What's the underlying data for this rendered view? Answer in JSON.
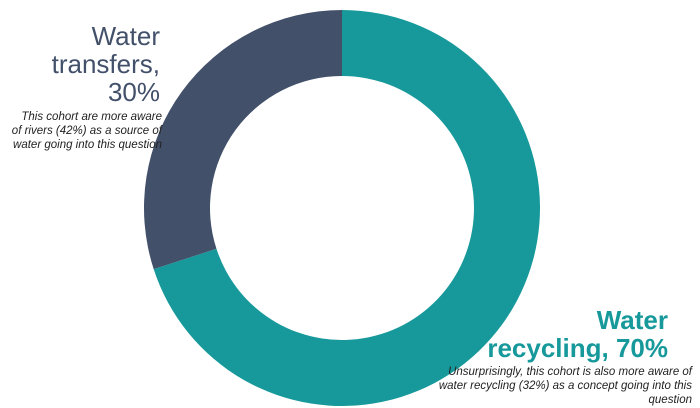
{
  "chart_data": {
    "type": "pie",
    "variant": "donut",
    "slices": [
      {
        "label_line1": "Water",
        "label_line2": "recycling, 70%",
        "value": 70,
        "color": "#17999b",
        "note": "Unsurprisingly, this cohort is also more aware of water recycling (32%) as a concept going into this question"
      },
      {
        "label_line1": "Water",
        "label_line2": "transfers,",
        "label_line3": "30%",
        "value": 30,
        "color": "#42506a",
        "note": "This cohort are more aware of rivers (42%) as a source of water going into this question"
      }
    ]
  }
}
